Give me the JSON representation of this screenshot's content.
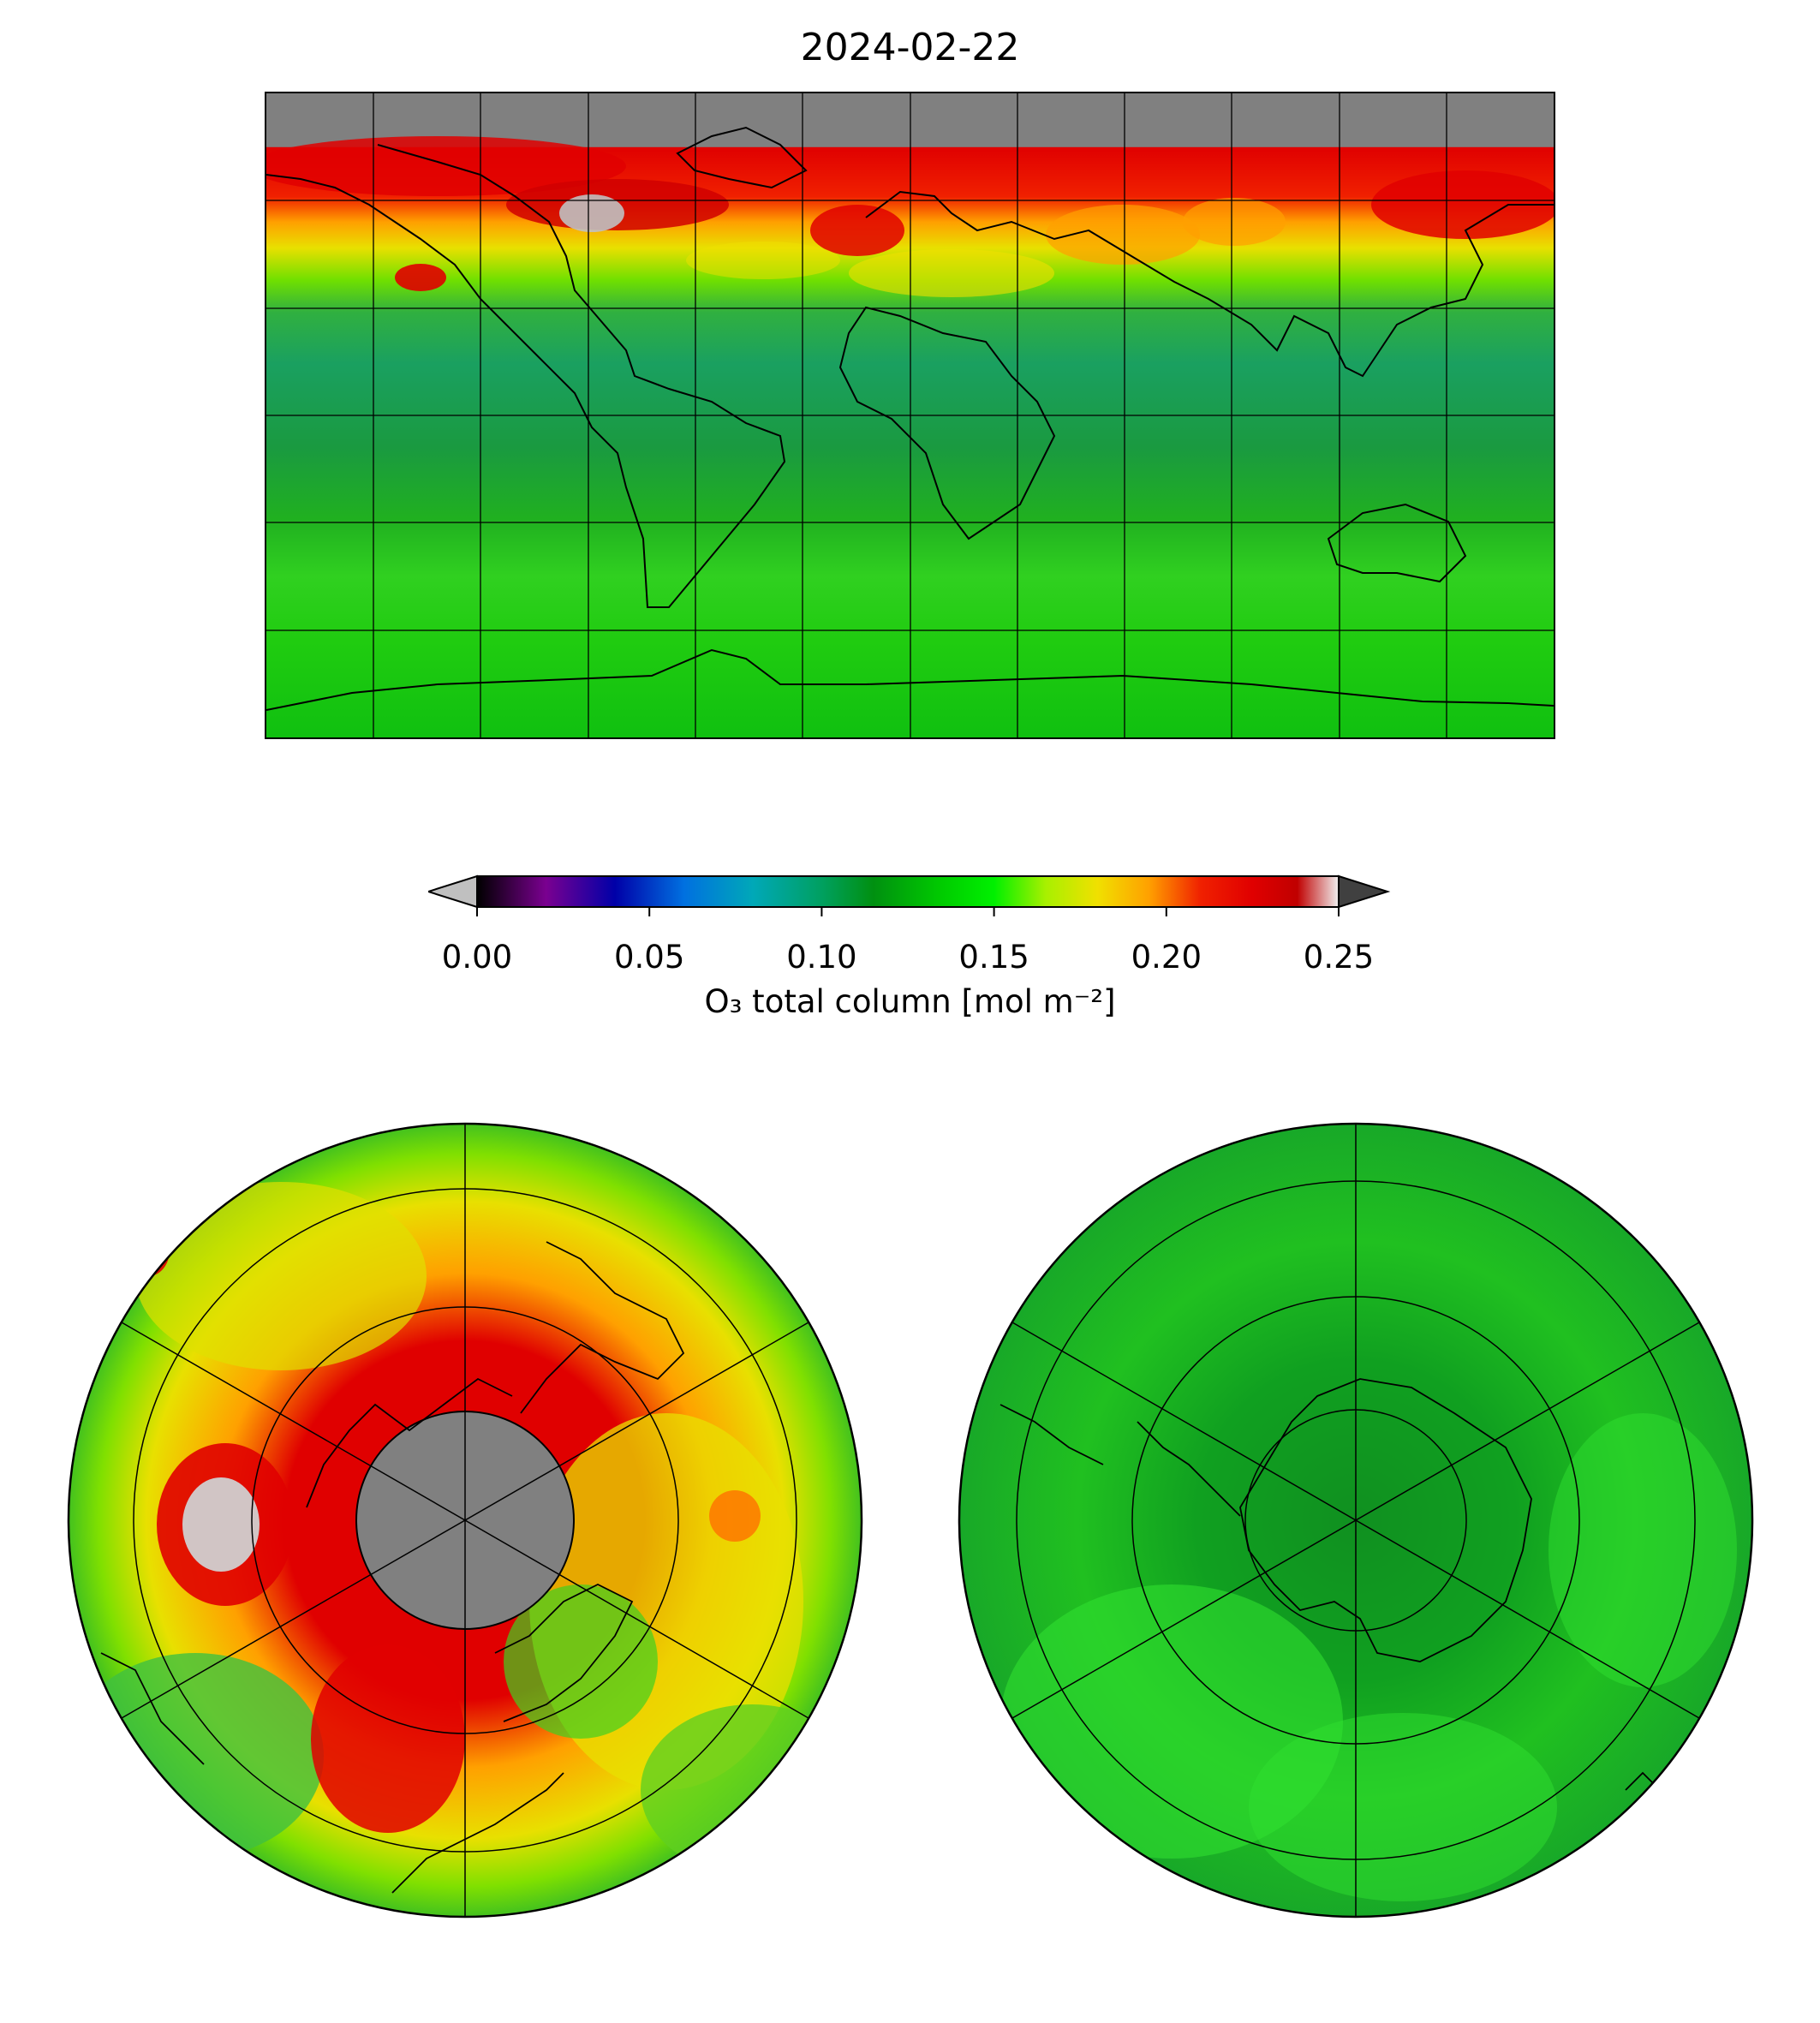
{
  "title": "2024-02-22",
  "colorbar": {
    "label": "O₃ total column [mol m⁻²]",
    "ticks": [
      "0.00",
      "0.05",
      "0.10",
      "0.15",
      "0.20",
      "0.25"
    ],
    "range": [
      0.0,
      0.25
    ],
    "extend": "both",
    "under_color": "#c0c0c0",
    "over_color": "#404040",
    "stops": [
      {
        "value": 0.0,
        "color": "#000000"
      },
      {
        "value": 0.02,
        "color": "#7a0090"
      },
      {
        "value": 0.04,
        "color": "#0000a8"
      },
      {
        "value": 0.06,
        "color": "#0070e0"
      },
      {
        "value": 0.08,
        "color": "#00a8b8"
      },
      {
        "value": 0.1,
        "color": "#00a060"
      },
      {
        "value": 0.115,
        "color": "#009010"
      },
      {
        "value": 0.135,
        "color": "#00cc00"
      },
      {
        "value": 0.15,
        "color": "#00f000"
      },
      {
        "value": 0.165,
        "color": "#a8f000"
      },
      {
        "value": 0.18,
        "color": "#f0e000"
      },
      {
        "value": 0.195,
        "color": "#ffa000"
      },
      {
        "value": 0.21,
        "color": "#f02000"
      },
      {
        "value": 0.225,
        "color": "#e00000"
      },
      {
        "value": 0.238,
        "color": "#c00000"
      },
      {
        "value": 0.25,
        "color": "#f0f0f0"
      }
    ]
  },
  "maps": {
    "global": {
      "projection": "equirectangular",
      "no_data_color": "#808080",
      "grid": true,
      "coastlines": true
    },
    "north_polar": {
      "projection": "north polar stereographic",
      "grid": true,
      "coastlines": true
    },
    "south_polar": {
      "projection": "south polar stereographic",
      "grid": true,
      "coastlines": true
    }
  }
}
